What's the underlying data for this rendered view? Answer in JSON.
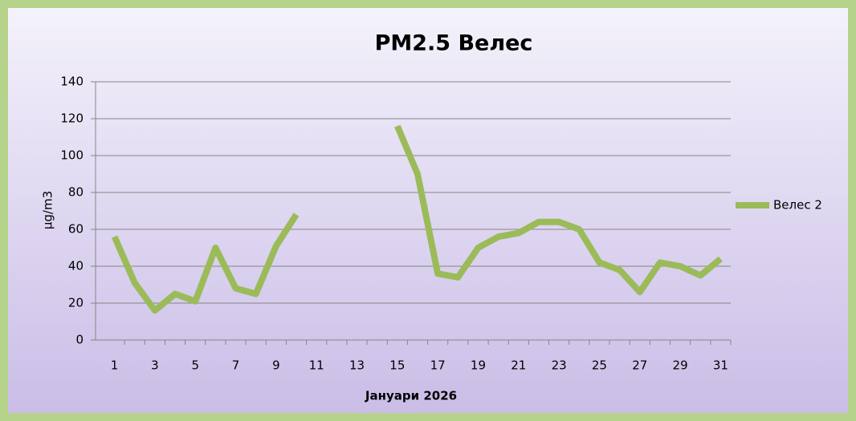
{
  "chart_data": {
    "type": "line",
    "title": "PM2.5 Велес",
    "x_label": "Јануари 2026",
    "y_label": "µg/m3",
    "categories": [
      "1",
      null,
      "3",
      null,
      "5",
      null,
      "7",
      null,
      "9",
      null,
      "11",
      null,
      "13",
      null,
      "15",
      null,
      "17",
      null,
      "19",
      null,
      "21",
      null,
      "23",
      null,
      "25",
      null,
      "27",
      null,
      "29",
      null,
      "31"
    ],
    "series": [
      {
        "name": "Велес 2",
        "color": "#9bbb59",
        "values": [
          56,
          31,
          16,
          25,
          21,
          50,
          28,
          25,
          51,
          68,
          null,
          null,
          null,
          null,
          116,
          90,
          36,
          34,
          50,
          56,
          58,
          64,
          64,
          60,
          42,
          38,
          26,
          42,
          40,
          35,
          44
        ]
      }
    ],
    "ylim": [
      0,
      140
    ],
    "yticks": [
      0,
      20,
      40,
      60,
      80,
      100,
      120,
      140
    ],
    "grid": true,
    "legend": "right"
  }
}
